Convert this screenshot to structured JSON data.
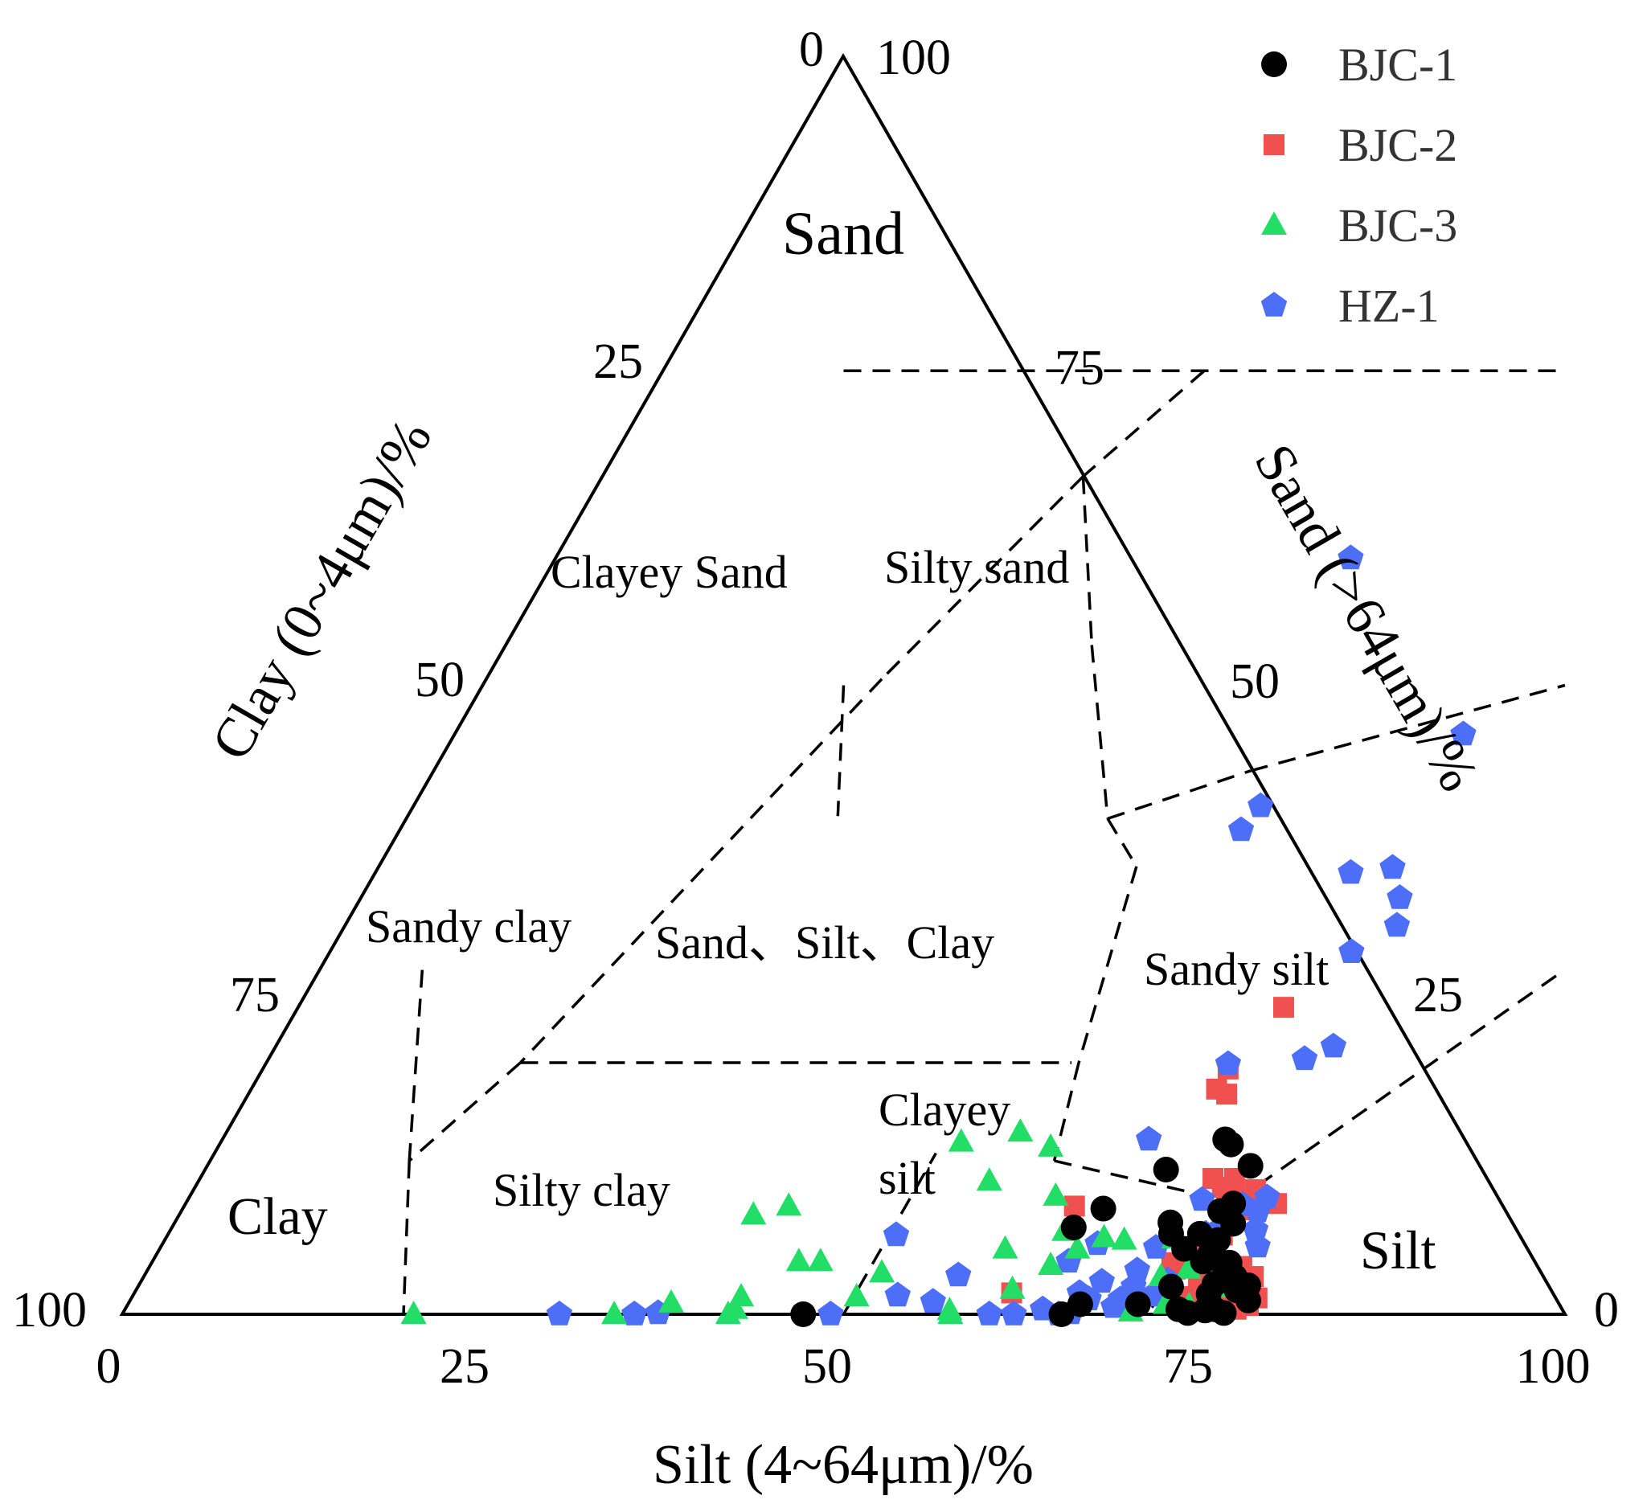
{
  "chart_data": {
    "type": "ternary-scatter",
    "axes": {
      "clay": {
        "title": "Clay (0~4μm)/%",
        "ticks": [
          "0",
          "25",
          "50",
          "75",
          "100"
        ]
      },
      "sand": {
        "title": "Sand (>64μm)/%",
        "ticks": [
          "100",
          "75",
          "50",
          "25",
          "0"
        ]
      },
      "silt": {
        "title": "Silt (4~64μm)/%",
        "ticks": [
          "0",
          "25",
          "50",
          "75",
          "100"
        ]
      }
    },
    "regions": [
      {
        "name": "Sand"
      },
      {
        "name": "Clayey Sand"
      },
      {
        "name": "Silty sand"
      },
      {
        "name": "Sandy clay"
      },
      {
        "name": "Sand、Silt、Clay"
      },
      {
        "name": "Sandy silt"
      },
      {
        "name": "Clay"
      },
      {
        "name": "Silty clay"
      },
      {
        "name": "Clayey silt"
      },
      {
        "name": "Silt"
      }
    ],
    "series": [
      {
        "name": "BJC-1",
        "marker": "circle",
        "color": "#000000",
        "points": [
          [
            62.5,
            6.9
          ],
          [
            66.0,
            0.8
          ],
          [
            70.0,
            0.8
          ],
          [
            73.0,
            0.4
          ],
          [
            74.5,
            2.4
          ],
          [
            75.5,
            0.4
          ],
          [
            73.0,
            4.7
          ],
          [
            72.0,
            8.2
          ],
          [
            69.5,
            13.9
          ],
          [
            70.1,
            13.5
          ],
          [
            72.3,
            11.8
          ],
          [
            66.6,
            11.5
          ],
          [
            69.5,
            6.4
          ],
          [
            69.0,
            7.3
          ],
          [
            71.5,
            6.4
          ],
          [
            71.0,
            5.2
          ],
          [
            72.8,
            4.2
          ],
          [
            72.6,
            8.8
          ],
          [
            73.4,
            7.2
          ],
          [
            73.0,
            5.9
          ],
          [
            74.5,
            3.8
          ],
          [
            76.3,
            1.9
          ],
          [
            75.8,
            2.8
          ],
          [
            77.5,
            1.1
          ],
          [
            75.1,
            0.6
          ],
          [
            76.9,
            2.3
          ],
          [
            75.6,
            3.0
          ],
          [
            74.9,
            0.3
          ],
          [
            76.3,
            0.1
          ],
          [
            47.2,
            0.0
          ],
          [
            65.1,
            0.0
          ],
          [
            63.8,
            8.4
          ],
          [
            71.6,
            2.2
          ],
          [
            74.7,
            4.1
          ],
          [
            74.5,
            1.6
          ],
          [
            73.8,
            0.1
          ]
        ]
      },
      {
        "name": "BJC-2",
        "marker": "square",
        "color": "#f05050",
        "points": [
          [
            68.3,
            24.4
          ],
          [
            66.9,
            19.5
          ],
          [
            66.9,
            17.9
          ],
          [
            67.8,
            17.5
          ],
          [
            70.2,
            10.8
          ],
          [
            71.7,
            10.8
          ],
          [
            71.2,
            10.1
          ],
          [
            73.6,
            9.9
          ],
          [
            72.8,
            9.2
          ],
          [
            75.6,
            8.8
          ],
          [
            74.3,
            8.3
          ],
          [
            72.3,
            8.5
          ],
          [
            71.5,
            5.2
          ],
          [
            71.8,
            4.8
          ],
          [
            70.7,
            4.1
          ],
          [
            71.2,
            3.6
          ],
          [
            73.6,
            3.7
          ],
          [
            74.7,
            3.6
          ],
          [
            75.7,
            3.8
          ],
          [
            75.6,
            2.4
          ],
          [
            76.5,
            2.1
          ],
          [
            77.0,
            1.8
          ],
          [
            78.0,
            1.3
          ],
          [
            77.7,
            0.7
          ],
          [
            77.0,
            0.4
          ],
          [
            75.8,
            0.3
          ],
          [
            76.2,
            2.8
          ],
          [
            74.5,
            2.5
          ],
          [
            73.1,
            1.4
          ],
          [
            74.3,
            1.2
          ],
          [
            76.9,
            3.0
          ],
          [
            73.6,
            0.6
          ],
          [
            76.3,
            0.6
          ],
          [
            72.5,
            0.9
          ],
          [
            73.2,
            2.8
          ],
          [
            73.1,
            6.3
          ],
          [
            60.8,
            1.7
          ],
          [
            61.7,
            8.6
          ]
        ]
      },
      {
        "name": "BJC-3",
        "marker": "triangle",
        "color": "#22dd66",
        "points": [
          [
            20.2,
            0.0
          ],
          [
            34.1,
            0.0
          ],
          [
            37.6,
            0.9
          ],
          [
            42.2,
            1.4
          ],
          [
            42.3,
            0.4
          ],
          [
            42.0,
            0.0
          ],
          [
            44.8,
            4.2
          ],
          [
            46.3,
            4.2
          ],
          [
            39.8,
            7.9
          ],
          [
            41.9,
            8.6
          ],
          [
            50.2,
            1.4
          ],
          [
            51.0,
            3.3
          ],
          [
            51.3,
            13.7
          ],
          [
            55.0,
            14.5
          ],
          [
            57.7,
            13.3
          ],
          [
            54.8,
            10.6
          ],
          [
            58.6,
            5.2
          ],
          [
            57.2,
            0.3
          ],
          [
            57.4,
            0.0
          ],
          [
            60.0,
            9.4
          ],
          [
            62.0,
            6.6
          ],
          [
            63.6,
            5.2
          ],
          [
            65.0,
            6.1
          ],
          [
            66.5,
            5.9
          ],
          [
            69.9,
            6.0
          ],
          [
            72.1,
            3.6
          ],
          [
            70.5,
            3.0
          ],
          [
            71.9,
            0.8
          ],
          [
            73.6,
            0.7
          ],
          [
            74.8,
            2.1
          ],
          [
            69.8,
            0.2
          ],
          [
            60.7,
            2.0
          ],
          [
            62.4,
            3.9
          ]
        ]
      },
      {
        "name": "HZ-1",
        "marker": "pentagon",
        "color": "#4d6ef7",
        "points": [
          [
            55.1,
            60.1
          ],
          [
            58.7,
            40.4
          ],
          [
            58.3,
            38.5
          ],
          [
            69.9,
            46.1
          ],
          [
            67.6,
            35.1
          ],
          [
            70.8,
            28.8
          ],
          [
            72.0,
            33.1
          ],
          [
            70.3,
            35.5
          ],
          [
            72.9,
            30.9
          ],
          [
            71.8,
            20.3
          ],
          [
            73.3,
            21.3
          ],
          [
            66.7,
            19.9
          ],
          [
            64.2,
            13.9
          ],
          [
            65.5,
            1.7
          ],
          [
            64.9,
            0.0
          ],
          [
            66.4,
            1.2
          ],
          [
            66.6,
            2.6
          ],
          [
            68.6,
            3.5
          ],
          [
            69.0,
            5.3
          ],
          [
            68.4,
            0.6
          ],
          [
            69.0,
            2.2
          ],
          [
            68.6,
            1.2
          ],
          [
            70.7,
            1.5
          ],
          [
            71.1,
            2.7
          ],
          [
            71.9,
            6.4
          ],
          [
            73.3,
            8.7
          ],
          [
            74.6,
            8.2
          ],
          [
            70.3,
            9.1
          ],
          [
            72.5,
            6.5
          ],
          [
            75.2,
            6.7
          ],
          [
            76.0,
            5.4
          ],
          [
            74.7,
            9.3
          ],
          [
            63.5,
            4.2
          ],
          [
            64.8,
            5.6
          ],
          [
            60.1,
            0.0
          ],
          [
            61.8,
            0.0
          ],
          [
            63.6,
            0.4
          ],
          [
            65.7,
            0.1
          ],
          [
            55.7,
            1.0
          ],
          [
            56.4,
            3.1
          ],
          [
            53.0,
            1.5
          ],
          [
            50.5,
            6.3
          ],
          [
            49.1,
            0.0
          ],
          [
            37.1,
            0.1
          ],
          [
            35.5,
            0.0
          ],
          [
            30.3,
            0.0
          ]
        ]
      }
    ]
  }
}
